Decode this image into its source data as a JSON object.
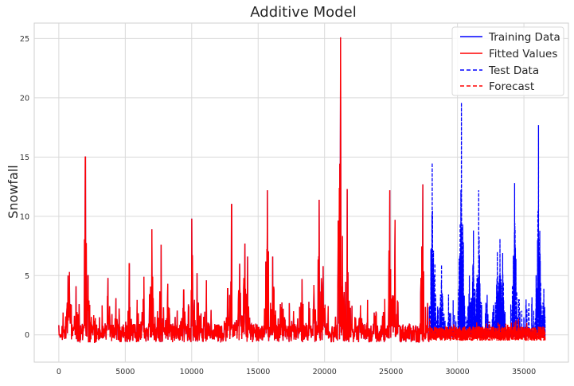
{
  "chart_data": {
    "type": "line",
    "title": "Additive Model",
    "xlabel": "",
    "ylabel": "Snowfall",
    "xlim": [
      -1850,
      38350
    ],
    "ylim": [
      -2.3,
      26.3
    ],
    "xticks": [
      0,
      5000,
      10000,
      15000,
      20000,
      25000,
      30000,
      35000
    ],
    "yticks": [
      0,
      5,
      10,
      15,
      20,
      25
    ],
    "grid": true,
    "legend_position": "top-right",
    "series": [
      {
        "name": "Training Data",
        "color": "#0000ff",
        "style": "solid",
        "x_range": [
          0,
          27850
        ],
        "x": [
          0,
          700,
          800,
          1300,
          2000,
          2200,
          3700,
          4300,
          5300,
          6400,
          7000,
          7700,
          8200,
          9400,
          10000,
          10400,
          11100,
          12700,
          13000,
          13600,
          14000,
          14200,
          15700,
          16100,
          18300,
          19200,
          19600,
          19900,
          21100,
          21200,
          21700,
          22700,
          24900,
          25300,
          27400
        ],
        "y": [
          0,
          5.0,
          5.3,
          4.1,
          15.0,
          5.0,
          4.8,
          3.1,
          6.0,
          4.9,
          8.9,
          7.6,
          4.3,
          3.8,
          9.8,
          5.2,
          4.6,
          3.9,
          11.0,
          6.0,
          7.7,
          6.6,
          12.2,
          6.6,
          4.7,
          4.2,
          11.4,
          5.8,
          12.4,
          25.1,
          12.3,
          2.5,
          12.2,
          9.7,
          12.7
        ]
      },
      {
        "name": "Fitted Values",
        "color": "#ff0000",
        "style": "solid",
        "x_range": [
          0,
          27850
        ]
      },
      {
        "name": "Test Data",
        "color": "#0000ff",
        "style": "dashed",
        "x_range": [
          27850,
          36600
        ],
        "x": [
          28100,
          28300,
          28800,
          30300,
          30900,
          31200,
          31600,
          33000,
          33200,
          33400,
          34300,
          36100,
          36500
        ],
        "y": [
          14.5,
          6.0,
          5.9,
          19.6,
          5.0,
          8.8,
          12.2,
          7.0,
          8.1,
          6.9,
          12.8,
          17.7,
          3.9
        ]
      },
      {
        "name": "Forecast",
        "color": "#ff0000",
        "style": "dashed",
        "x_range": [
          27850,
          36600
        ]
      }
    ]
  }
}
